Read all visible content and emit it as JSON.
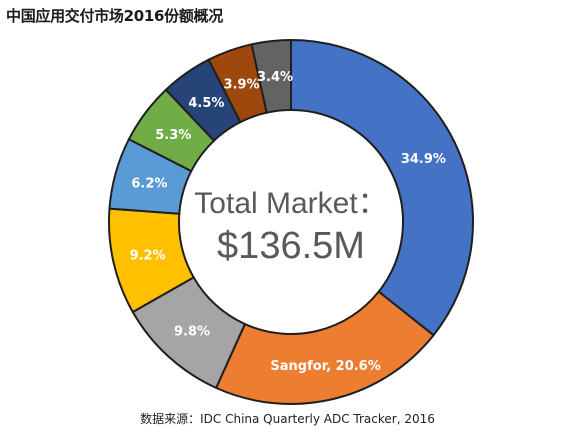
{
  "chart_data": {
    "type": "pie",
    "variant": "donut",
    "title": "中国应用交付市场2016份额概况",
    "center_label_line1": "Total Market：",
    "center_label_line2": "$136.5M",
    "slices": [
      {
        "label": "34.9%",
        "value": 34.9,
        "color": "#4472C4"
      },
      {
        "label": "Sangfor, 20.6%",
        "value": 20.6,
        "color": "#ED7D31"
      },
      {
        "label": "9.8%",
        "value": 9.8,
        "color": "#A5A5A5"
      },
      {
        "label": "9.2%",
        "value": 9.2,
        "color": "#FFC000"
      },
      {
        "label": "6.2%",
        "value": 6.2,
        "color": "#5B9BD5"
      },
      {
        "label": "5.3%",
        "value": 5.3,
        "color": "#70AD47"
      },
      {
        "label": "4.5%",
        "value": 4.5,
        "color": "#264478"
      },
      {
        "label": "3.9%",
        "value": 3.9,
        "color": "#9E480E"
      },
      {
        "label": "3.4%",
        "value": 3.4,
        "color": "#636363"
      }
    ],
    "start": "12 o'clock",
    "direction": "clockwise",
    "legend": "none",
    "source": "数据来源：IDC China Quarterly ADC Tracker, 2016"
  }
}
